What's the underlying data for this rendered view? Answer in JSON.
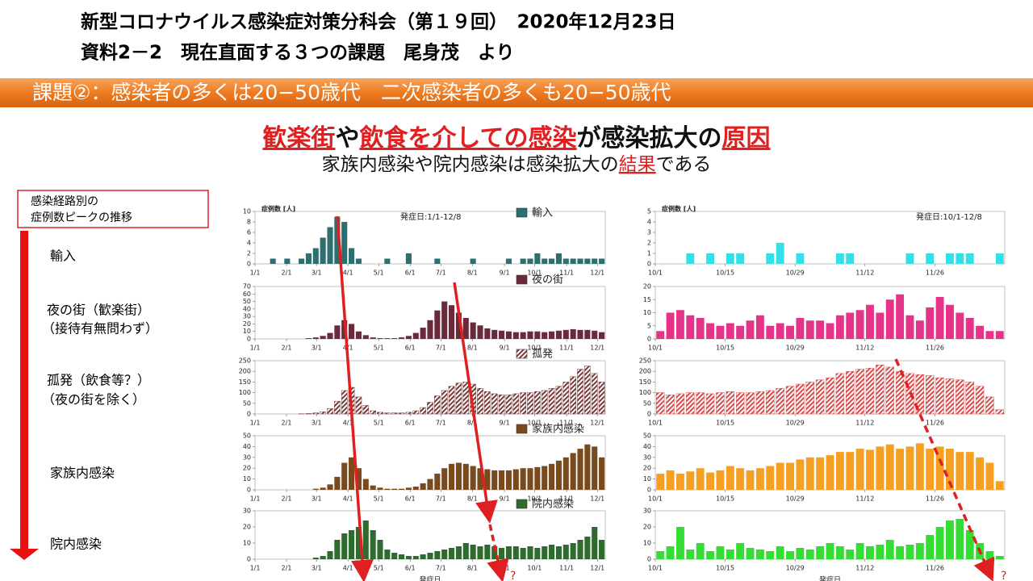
{
  "header": {
    "line1": "新型コロナウイルス感染症対策分科会（第１９回）　2020年12月23日",
    "line2": "資料2－2　現在直面する３つの課題　尾身茂　より"
  },
  "banner": "課題②：感染者の多くは20−50歳代　二次感染者の多くも20−50歳代",
  "headline": [
    {
      "text": "歓楽街",
      "emphasis": true
    },
    {
      "text": "や",
      "emphasis": false
    },
    {
      "text": "飲食を介しての感染",
      "emphasis": true
    },
    {
      "text": "が感染拡大の",
      "emphasis": false
    },
    {
      "text": "原因",
      "emphasis": true
    }
  ],
  "subline": [
    {
      "text": "家族内感染や院内感染は感染拡大の",
      "emphasis": false
    },
    {
      "text": "結果",
      "emphasis": true
    },
    {
      "text": "である",
      "emphasis": false
    }
  ],
  "side": {
    "title": [
      "感染経路別の",
      "症例数ピークの推移"
    ],
    "labels": [
      "輸入",
      "夜の街（歓楽街）",
      "（接待有無問わず）",
      "孤発（飲食等？）",
      "（夜の街を除く）",
      "家族内感染",
      "院内感染"
    ]
  },
  "question_marks": [
    "?",
    "?"
  ],
  "chart_data": [
    {
      "type": "bar",
      "name": "輸入",
      "color": "#2d6e6e",
      "hatch": false,
      "y_label": "症例数 [人]",
      "note": "発症日:1/1-12/8",
      "xlim": [
        0,
        49
      ],
      "ylim": [
        0,
        10
      ],
      "yticks": [
        0,
        2,
        4,
        6,
        8,
        10
      ],
      "xticks": [
        {
          "value": 0,
          "label": "1/1"
        },
        {
          "value": 4.4,
          "label": "2/1"
        },
        {
          "value": 8.6,
          "label": "3/1"
        },
        {
          "value": 13,
          "label": "4/1"
        },
        {
          "value": 17.3,
          "label": "5/1"
        },
        {
          "value": 21.7,
          "label": "6/1"
        },
        {
          "value": 26,
          "label": "7/1"
        },
        {
          "value": 30.4,
          "label": "8/1"
        },
        {
          "value": 34.9,
          "label": "9/1"
        },
        {
          "value": 39.1,
          "label": "10/1"
        },
        {
          "value": 43.6,
          "label": "11/1"
        },
        {
          "value": 47.9,
          "label": "12/1"
        }
      ],
      "values": [
        0,
        0,
        1,
        0,
        1,
        0,
        1,
        2,
        3,
        5,
        7,
        9,
        8,
        3,
        1,
        0,
        0,
        0,
        1,
        0,
        0,
        2,
        0,
        0,
        0,
        1,
        0,
        0,
        0,
        0,
        1,
        0,
        0,
        0,
        0,
        1,
        0,
        1,
        1,
        2,
        1,
        1,
        2,
        1,
        1,
        1,
        1,
        1,
        1
      ]
    },
    {
      "type": "bar",
      "name": "夜の街",
      "color": "#6b2a3a",
      "hatch": false,
      "xlim": [
        0,
        49
      ],
      "ylim": [
        0,
        70
      ],
      "yticks": [
        0,
        10,
        20,
        30,
        40,
        50,
        60,
        70
      ],
      "xticks": [
        {
          "value": 0,
          "label": "1/1"
        },
        {
          "value": 4.4,
          "label": "2/1"
        },
        {
          "value": 8.6,
          "label": "3/1"
        },
        {
          "value": 13,
          "label": "4/1"
        },
        {
          "value": 17.3,
          "label": "5/1"
        },
        {
          "value": 21.7,
          "label": "6/1"
        },
        {
          "value": 26,
          "label": "7/1"
        },
        {
          "value": 30.4,
          "label": "8/1"
        },
        {
          "value": 34.9,
          "label": "9/1"
        },
        {
          "value": 39.1,
          "label": "10/1"
        },
        {
          "value": 43.6,
          "label": "11/1"
        },
        {
          "value": 47.9,
          "label": "12/1"
        }
      ],
      "values": [
        0,
        0,
        0,
        0,
        0,
        0,
        0,
        1,
        2,
        4,
        8,
        18,
        25,
        20,
        10,
        5,
        2,
        1,
        1,
        1,
        2,
        4,
        8,
        15,
        25,
        38,
        50,
        45,
        35,
        28,
        22,
        18,
        14,
        12,
        11,
        10,
        9,
        9,
        10,
        10,
        9,
        10,
        11,
        12,
        13,
        12,
        12,
        11,
        9
      ]
    },
    {
      "type": "bar",
      "name": "孤発",
      "color": "#7a3a3a",
      "hatch": true,
      "xlim": [
        0,
        49
      ],
      "ylim": [
        0,
        250
      ],
      "yticks": [
        0,
        50,
        100,
        150,
        200,
        250
      ],
      "xticks": [
        {
          "value": 0,
          "label": "1/1"
        },
        {
          "value": 4.4,
          "label": "2/1"
        },
        {
          "value": 8.6,
          "label": "3/1"
        },
        {
          "value": 13,
          "label": "4/1"
        },
        {
          "value": 17.3,
          "label": "5/1"
        },
        {
          "value": 21.7,
          "label": "6/1"
        },
        {
          "value": 26,
          "label": "7/1"
        },
        {
          "value": 30.4,
          "label": "8/1"
        },
        {
          "value": 34.9,
          "label": "9/1"
        },
        {
          "value": 39.1,
          "label": "10/1"
        },
        {
          "value": 43.6,
          "label": "11/1"
        },
        {
          "value": 47.9,
          "label": "12/1"
        }
      ],
      "values": [
        0,
        0,
        0,
        0,
        0,
        0,
        1,
        2,
        5,
        10,
        25,
        60,
        110,
        125,
        80,
        40,
        15,
        8,
        5,
        5,
        5,
        8,
        15,
        30,
        55,
        85,
        110,
        130,
        145,
        150,
        140,
        120,
        105,
        95,
        90,
        90,
        95,
        100,
        100,
        105,
        110,
        120,
        130,
        150,
        175,
        210,
        225,
        190,
        150
      ]
    },
    {
      "type": "bar",
      "name": "家族内感染",
      "color": "#7a4a1f",
      "hatch": false,
      "xlim": [
        0,
        49
      ],
      "ylim": [
        0,
        50
      ],
      "yticks": [
        0,
        10,
        20,
        30,
        40,
        50
      ],
      "xticks": [
        {
          "value": 0,
          "label": "1/1"
        },
        {
          "value": 4.4,
          "label": "2/1"
        },
        {
          "value": 8.6,
          "label": "3/1"
        },
        {
          "value": 13,
          "label": "4/1"
        },
        {
          "value": 17.3,
          "label": "5/1"
        },
        {
          "value": 21.7,
          "label": "6/1"
        },
        {
          "value": 26,
          "label": "7/1"
        },
        {
          "value": 30.4,
          "label": "8/1"
        },
        {
          "value": 34.9,
          "label": "9/1"
        },
        {
          "value": 39.1,
          "label": "10/1"
        },
        {
          "value": 43.6,
          "label": "11/1"
        },
        {
          "value": 47.9,
          "label": "12/1"
        }
      ],
      "values": [
        0,
        0,
        0,
        0,
        0,
        0,
        0,
        0,
        1,
        2,
        5,
        12,
        25,
        30,
        20,
        10,
        4,
        2,
        1,
        1,
        1,
        2,
        3,
        6,
        10,
        15,
        20,
        24,
        25,
        24,
        22,
        20,
        19,
        18,
        18,
        18,
        19,
        20,
        20,
        21,
        22,
        24,
        27,
        30,
        34,
        38,
        42,
        40,
        30
      ]
    },
    {
      "type": "bar",
      "name": "院内感染",
      "color": "#2e6b2e",
      "hatch": false,
      "xlabel": "発症日",
      "xlim": [
        0,
        49
      ],
      "ylim": [
        0,
        30
      ],
      "yticks": [
        0,
        10,
        20,
        30
      ],
      "xticks": [
        {
          "value": 0,
          "label": "1/1"
        },
        {
          "value": 4.4,
          "label": "2/1"
        },
        {
          "value": 8.6,
          "label": "3/1"
        },
        {
          "value": 13,
          "label": "4/1"
        },
        {
          "value": 17.3,
          "label": "5/1"
        },
        {
          "value": 21.7,
          "label": "6/1"
        },
        {
          "value": 26,
          "label": "7/1"
        },
        {
          "value": 30.4,
          "label": "8/1"
        },
        {
          "value": 34.9,
          "label": "9/1"
        },
        {
          "value": 39.1,
          "label": "10/1"
        },
        {
          "value": 43.6,
          "label": "11/1"
        },
        {
          "value": 47.9,
          "label": "12/1"
        }
      ],
      "values": [
        0,
        0,
        0,
        0,
        0,
        0,
        0,
        0,
        1,
        2,
        5,
        12,
        16,
        18,
        20,
        24,
        18,
        12,
        6,
        4,
        3,
        2,
        2,
        3,
        4,
        5,
        6,
        7,
        8,
        10,
        9,
        8,
        9,
        8,
        7,
        8,
        8,
        7,
        8,
        7,
        8,
        9,
        8,
        9,
        10,
        12,
        14,
        20,
        12
      ]
    },
    {
      "type": "bar",
      "color": "#33e0e8",
      "hatch": false,
      "y_label": "症例数 [人]",
      "note": "発症日:10/1-12/8",
      "xlim": [
        0,
        35
      ],
      "ylim": [
        0,
        5
      ],
      "yticks": [
        0,
        1,
        2,
        3,
        4,
        5
      ],
      "xticks": [
        {
          "value": 0,
          "label": "10/1"
        },
        {
          "value": 7,
          "label": "10/15"
        },
        {
          "value": 14,
          "label": "10/29"
        },
        {
          "value": 21,
          "label": "11/12"
        },
        {
          "value": 28,
          "label": "11/26"
        }
      ],
      "values": [
        0,
        0,
        0,
        1,
        0,
        1,
        0,
        1,
        1,
        0,
        0,
        1,
        2,
        0,
        1,
        0,
        0,
        0,
        1,
        1,
        0,
        0,
        0,
        0,
        0,
        1,
        0,
        1,
        0,
        1,
        1,
        1,
        0,
        0,
        1
      ]
    },
    {
      "type": "bar",
      "color": "#e6338a",
      "hatch": false,
      "xlim": [
        0,
        35
      ],
      "ylim": [
        0,
        20
      ],
      "yticks": [
        0,
        5,
        10,
        15,
        20
      ],
      "xticks": [
        {
          "value": 0,
          "label": "10/1"
        },
        {
          "value": 7,
          "label": "10/15"
        },
        {
          "value": 14,
          "label": "10/29"
        },
        {
          "value": 21,
          "label": "11/12"
        },
        {
          "value": 28,
          "label": "11/26"
        }
      ],
      "values": [
        3,
        10,
        11,
        9,
        8,
        6,
        5,
        6,
        5,
        7,
        9,
        5,
        6,
        5,
        8,
        7,
        7,
        6,
        9,
        10,
        11,
        13,
        10,
        15,
        17,
        9,
        7,
        12,
        16,
        13,
        10,
        8,
        5,
        3,
        3
      ]
    },
    {
      "type": "bar",
      "color": "#d94a4a",
      "hatch": true,
      "xlim": [
        0,
        35
      ],
      "ylim": [
        0,
        250
      ],
      "yticks": [
        0,
        50,
        100,
        150,
        200,
        250
      ],
      "xticks": [
        {
          "value": 0,
          "label": "10/1"
        },
        {
          "value": 7,
          "label": "10/15"
        },
        {
          "value": 14,
          "label": "10/29"
        },
        {
          "value": 21,
          "label": "11/12"
        },
        {
          "value": 28,
          "label": "11/26"
        }
      ],
      "values": [
        100,
        90,
        95,
        100,
        100,
        95,
        100,
        105,
        100,
        100,
        105,
        110,
        120,
        130,
        140,
        150,
        160,
        170,
        190,
        200,
        210,
        215,
        230,
        220,
        200,
        190,
        185,
        180,
        170,
        165,
        160,
        150,
        130,
        80,
        20
      ]
    },
    {
      "type": "bar",
      "color": "#f5a023",
      "hatch": false,
      "xlim": [
        0,
        35
      ],
      "ylim": [
        0,
        50
      ],
      "yticks": [
        0,
        10,
        20,
        30,
        40,
        50
      ],
      "xticks": [
        {
          "value": 0,
          "label": "10/1"
        },
        {
          "value": 7,
          "label": "10/15"
        },
        {
          "value": 14,
          "label": "10/29"
        },
        {
          "value": 21,
          "label": "11/12"
        },
        {
          "value": 28,
          "label": "11/26"
        }
      ],
      "values": [
        15,
        18,
        15,
        17,
        20,
        16,
        18,
        22,
        20,
        18,
        20,
        22,
        25,
        25,
        28,
        30,
        30,
        32,
        35,
        35,
        38,
        37,
        40,
        42,
        38,
        40,
        43,
        38,
        40,
        38,
        35,
        35,
        30,
        25,
        8
      ]
    },
    {
      "type": "bar",
      "color": "#33dd33",
      "hatch": false,
      "xlabel": "発症日",
      "xlim": [
        0,
        35
      ],
      "ylim": [
        0,
        30
      ],
      "yticks": [
        0,
        10,
        20,
        30
      ],
      "xticks": [
        {
          "value": 0,
          "label": "10/1"
        },
        {
          "value": 7,
          "label": "10/15"
        },
        {
          "value": 14,
          "label": "10/29"
        },
        {
          "value": 21,
          "label": "11/12"
        },
        {
          "value": 28,
          "label": "11/26"
        }
      ],
      "values": [
        5,
        8,
        20,
        6,
        10,
        5,
        8,
        6,
        10,
        7,
        6,
        5,
        8,
        5,
        7,
        6,
        8,
        10,
        8,
        6,
        10,
        8,
        9,
        12,
        8,
        9,
        10,
        15,
        20,
        24,
        25,
        18,
        10,
        5,
        2
      ]
    }
  ]
}
